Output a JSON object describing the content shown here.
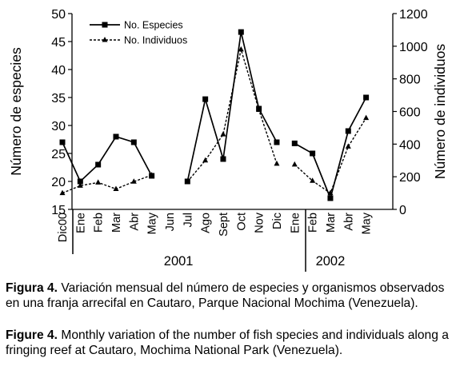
{
  "chart_data": {
    "type": "line",
    "categories": [
      "Dic00",
      "Ene",
      "Feb",
      "Mar",
      "Abr",
      "May",
      "Jun",
      "Jul",
      "Ago",
      "Sept",
      "Oct",
      "Nov",
      "Dic",
      "Ene",
      "Feb",
      "Mar",
      "Abr",
      "May"
    ],
    "year_groups": [
      {
        "label": "2001",
        "from": 1,
        "to": 12
      },
      {
        "label": "2002",
        "from": 13,
        "to": 17
      }
    ],
    "ylabel_left": "Número de especies",
    "ylabel_right": "Número de individuos",
    "ylim_left": [
      15,
      50
    ],
    "yticks_left": [
      15,
      20,
      25,
      30,
      35,
      40,
      45,
      50
    ],
    "ylim_right": [
      0,
      1200
    ],
    "yticks_right": [
      0,
      200,
      400,
      600,
      800,
      1000,
      1200
    ],
    "grid": false,
    "legend_position": "top-left",
    "series": [
      {
        "name": "No. Especies",
        "axis": "left",
        "color": "#000000",
        "marker": "square",
        "values": [
          27,
          20,
          23,
          28,
          27,
          21,
          null,
          20,
          34.7,
          24,
          46.7,
          33,
          27,
          26.8,
          25,
          17,
          29,
          35
        ]
      },
      {
        "name": "No. Individuos",
        "axis": "right",
        "color": "#000000",
        "marker": "triangle",
        "values": [
          100,
          145,
          165,
          125,
          170,
          210,
          null,
          170,
          300,
          460,
          980,
          610,
          280,
          275,
          175,
          100,
          385,
          560
        ]
      }
    ]
  },
  "captions": {
    "es_label": "Figura 4.",
    "es_text": " Variación mensual del número de especies y organismos observados en una franja arrecifal en Cautaro, Parque Nacional Mochima (Venezuela).",
    "en_label": "Figure 4.",
    "en_text": " Monthly variation of the number of fish species and individuals along a fringing reef at Cautaro, Mochima National Park (Venezuela)."
  }
}
